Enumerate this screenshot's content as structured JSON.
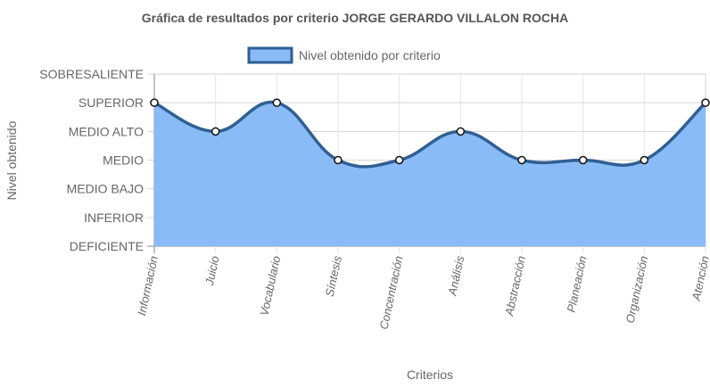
{
  "chart_data": {
    "type": "area",
    "title": "Gráfica de resultados por criterio JORGE GERARDO VILLALON ROCHA",
    "xlabel": "Criterios",
    "ylabel": "Nivel obtenido",
    "categories": [
      "Información",
      "Juicio",
      "Vocabulario",
      "Síntesis",
      "Concentración",
      "Análisis",
      "Abstracción",
      "Planeación",
      "Organización",
      "Atención"
    ],
    "y_levels": [
      "DEFICIENTE",
      "INFERIOR",
      "MEDIO BAJO",
      "MEDIO",
      "MEDIO ALTO",
      "SUPERIOR",
      "SOBRESALIENTE"
    ],
    "ylim": [
      0,
      6
    ],
    "series": [
      {
        "name": "Nivel obtenido por criterio",
        "values": [
          5,
          4,
          5,
          3,
          3,
          4,
          3,
          3,
          3,
          5
        ],
        "line_color": "#2f5f93",
        "fill_color": "#89bbf7"
      }
    ],
    "legend_position": "top",
    "grid": true,
    "smooth": true
  }
}
